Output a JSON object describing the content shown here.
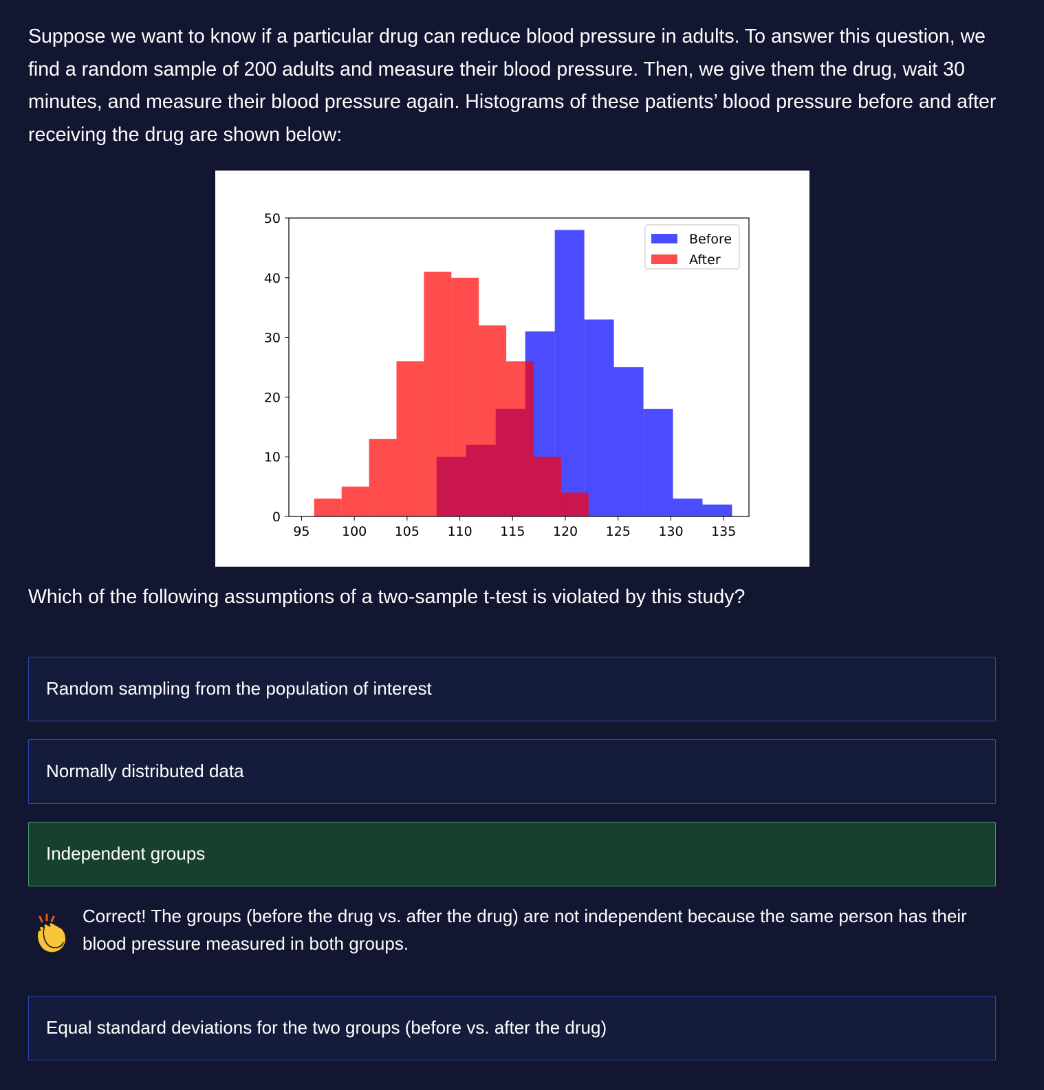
{
  "intro_text": "Suppose we want to know if a particular drug can reduce blood pressure in adults. To answer this question, we find a random sample of 200 adults and measure their blood pressure. Then, we give them the drug, wait 30 minutes, and measure their blood pressure again. Histograms of these patients’ blood pressure before and after receiving the drug are shown below:",
  "question_text": "Which of the following assumptions of a two-sample t-test is violated by this study?",
  "options": [
    {
      "label": "Random sampling from the population of interest",
      "state": "default"
    },
    {
      "label": "Normally distributed data",
      "state": "default"
    },
    {
      "label": "Independent groups",
      "state": "correct"
    },
    {
      "label": "Equal standard deviations for the two groups (before vs. after the drug)",
      "state": "default"
    }
  ],
  "feedback": {
    "icon": "clapping-hands-icon",
    "text": "Correct! The groups (before the drug vs. after the drug) are not independent because the same person has their blood pressure measured in both groups."
  },
  "colors": {
    "background": "#121631",
    "option_border": "#2c4bb8",
    "correct_background": "#17402f",
    "before_series": "#0000ff",
    "after_series": "#ff0000"
  },
  "chart_data": {
    "type": "histogram",
    "title": "",
    "xlabel": "",
    "ylabel": "",
    "xlim": [
      93.8,
      137.4
    ],
    "ylim": [
      0,
      50
    ],
    "xticks": [
      95,
      100,
      105,
      110,
      115,
      120,
      125,
      130,
      135
    ],
    "yticks": [
      0,
      10,
      20,
      30,
      40,
      50
    ],
    "legend_position": "top-right",
    "grid": false,
    "series": [
      {
        "name": "Before",
        "color": "#0000ff",
        "opacity": 0.7,
        "bin_edges": [
          107.8,
          110.6,
          113.4,
          116.2,
          119.0,
          121.8,
          124.6,
          127.4,
          130.2,
          133.0,
          135.8
        ],
        "counts": [
          10,
          12,
          18,
          31,
          48,
          33,
          25,
          18,
          3,
          2
        ]
      },
      {
        "name": "After",
        "color": "#ff0000",
        "opacity": 0.7,
        "bin_edges": [
          96.2,
          98.8,
          101.4,
          104.0,
          106.6,
          109.2,
          111.8,
          114.4,
          117.0,
          119.6,
          122.2
        ],
        "counts": [
          3,
          5,
          13,
          26,
          41,
          40,
          32,
          26,
          10,
          4
        ]
      }
    ]
  }
}
